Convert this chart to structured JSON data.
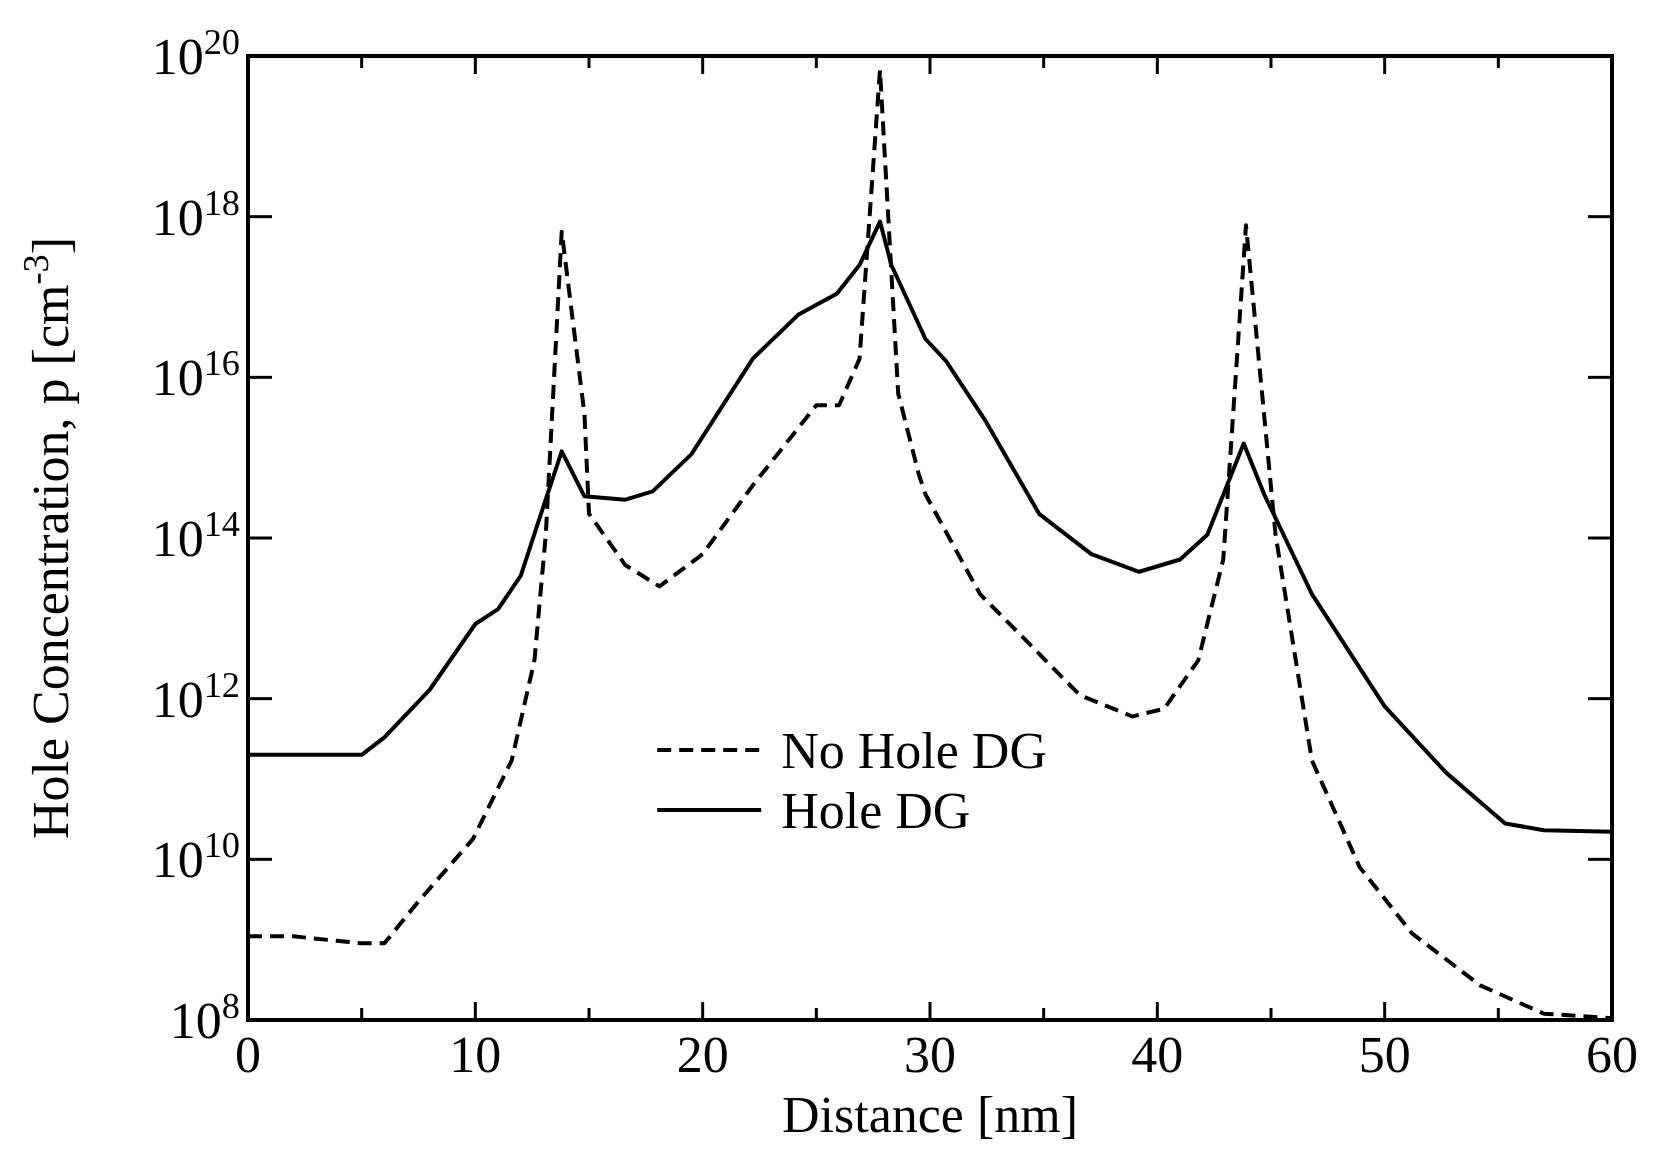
{
  "chart_data": {
    "type": "line",
    "xlabel": "Distance [nm]",
    "ylabel": "Hole Concentration, p [cm$^{-3}$]",
    "log": "y",
    "xlim": [
      0,
      60
    ],
    "xticks": [
      0,
      {
        "value": 5,
        "label": null
      },
      10,
      {
        "value": 15,
        "label": null
      },
      20,
      {
        "value": 25,
        "label": null
      },
      30,
      {
        "value": 35,
        "label": null
      },
      40,
      {
        "value": 45,
        "label": null
      },
      50,
      {
        "value": 55,
        "label": null
      },
      60
    ],
    "ylim": [
      100000000.0,
      1e+20
    ],
    "yticks": [
      {
        "value": 100000000.0,
        "label": "10$^{8}$"
      },
      {
        "value": 10000000000.0,
        "label": "10$^{10}$"
      },
      {
        "value": 1000000000000.0,
        "label": "10$^{12}$"
      },
      {
        "value": 100000000000000.0,
        "label": "10$^{14}$"
      },
      {
        "value": 1e+16,
        "label": "10$^{16}$"
      },
      {
        "value": 1e+18,
        "label": "10$^{18}$"
      },
      {
        "value": 1e+20,
        "label": "10$^{20}$"
      }
    ],
    "legend": "bottom",
    "grid": false,
    "marker": "none",
    "series": [
      {
        "name": "No Hole DG",
        "color": "#000000",
        "line_style": "dashed",
        "x": [
          0,
          2,
          5,
          6,
          7.5,
          9.9,
          11.6,
          12.6,
          13.1,
          13.8,
          14.8,
          15,
          16.6,
          18.1,
          20,
          22.2,
          25,
          26,
          26.9,
          27.8,
          28.6,
          29.5,
          29.8,
          32.2,
          33.6,
          36.6,
          38.9,
          40.3,
          41.8,
          42.9,
          43.9,
          45.2,
          46.8,
          48.9,
          51.2,
          54.2,
          57,
          60
        ],
        "values": [
          1100000000.0,
          1100000000.0,
          900000000.0,
          900000000.0,
          3000000000.0,
          18000000000.0,
          170000000000.0,
          3000000000000.0,
          110000000000000.0,
          6.5e+17,
          3500000000000000.0,
          200000000000000.0,
          46000000000000.0,
          25000000000000.0,
          63000000000000.0,
          450000000000000.0,
          4500000000000000.0,
          4500000000000000.0,
          1.7e+16,
          6.7e+19,
          6300000000000000.0,
          630000000000000.0,
          350000000000000.0,
          20000000000000.0,
          8000000000000.0,
          1100000000000.0,
          600000000000.0,
          750000000000.0,
          3000000000000.0,
          54000000000000.0,
          7.8e+17,
          110000000000000.0,
          170000000000.0,
          8000000000.0,
          1200000000.0,
          270000000.0,
          120000000.0,
          105000000.0
        ]
      },
      {
        "name": "Hole DG",
        "color": "#000000",
        "line_style": "solid",
        "x": [
          0,
          5,
          6,
          8,
          10,
          11,
          12,
          13,
          13.8,
          14.8,
          16.6,
          17.8,
          19.5,
          22.2,
          24.2,
          25.9,
          26.9,
          27.8,
          28.3,
          29.8,
          30.7,
          32.4,
          34.8,
          37.1,
          39.2,
          41,
          42.2,
          43.8,
          44.7,
          46.8,
          50,
          52.7,
          55.3,
          57,
          60
        ],
        "values": [
          200000000000.0,
          200000000000.0,
          330000000000.0,
          1300000000000.0,
          8500000000000.0,
          13000000000000.0,
          34000000000000.0,
          250000000000000.0,
          1200000000000000.0,
          330000000000000.0,
          300000000000000.0,
          380000000000000.0,
          1100000000000000.0,
          1.7e+16,
          6e+16,
          1.1e+17,
          2.5e+17,
          8.7e+17,
          2.5e+17,
          3e+16,
          1.6e+16,
          3000000000000000.0,
          200000000000000.0,
          63000000000000.0,
          38000000000000.0,
          54000000000000.0,
          110000000000000.0,
          1500000000000000.0,
          350000000000000.0,
          20000000000000.0,
          800000000000.0,
          120000000000.0,
          28000000000.0,
          23000000000.0,
          22000000000.0
        ]
      }
    ]
  }
}
